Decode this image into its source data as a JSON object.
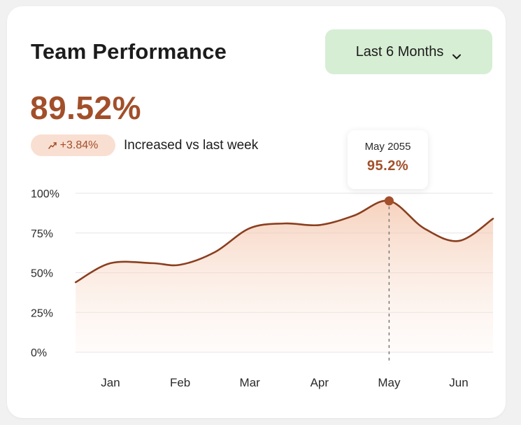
{
  "card": {
    "title": "Team Performance",
    "range_selector": {
      "label": "Last 6 Months",
      "icon": "chevron-down-icon"
    },
    "summary": {
      "value": "89.52%",
      "delta": "+3.84%",
      "delta_icon": "trend-up-icon",
      "delta_text": "Increased vs last week"
    },
    "tooltip": {
      "label": "May 2055",
      "value": "95.2%"
    }
  },
  "colors": {
    "accent": "#a24f2a",
    "line": "#8a3f1f",
    "area": "#f3c3a8",
    "button_bg": "#d6eed3",
    "badge_bg": "#f9dfd2",
    "grid": "#e6e6e6"
  },
  "chart_data": {
    "type": "area",
    "categories": [
      "Jan",
      "Feb",
      "Mar",
      "Apr",
      "May",
      "Jun"
    ],
    "x": [
      -0.5,
      0,
      0.6,
      1,
      1.5,
      2,
      2.5,
      3,
      3.5,
      4,
      4.5,
      5,
      5.5
    ],
    "values": [
      44,
      56,
      56,
      55,
      63,
      78,
      81,
      80,
      86,
      95.2,
      78,
      70,
      84
    ],
    "yticks": [
      "0%",
      "25%",
      "50%",
      "75%",
      "100%"
    ],
    "ylim": [
      0,
      100
    ],
    "grid": true,
    "highlight": {
      "category": "May",
      "value": 95.2
    }
  }
}
